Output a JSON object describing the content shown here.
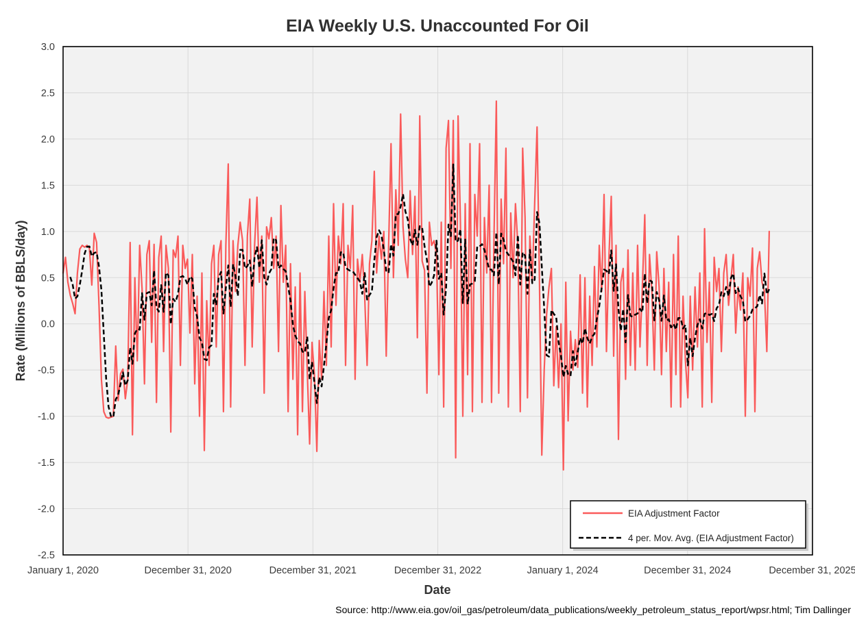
{
  "page": {
    "source_line": "Source: http://www.eia.gov/oil_gas/petroleum/data_publications/weekly_petroleum_status_report/wpsr.html; Tim Dallinger"
  },
  "chart_data": {
    "type": "line",
    "title": "EIA Weekly U.S. Unaccounted For Oil",
    "xlabel": "Date",
    "ylabel": "Rate (Millions of BBLS/day)",
    "ylim": [
      -2.5,
      3.0
    ],
    "y_tick_labels": [
      "3.0",
      "2.5",
      "2.0",
      "1.5",
      "1.0",
      "0.5",
      "0.0",
      "-0.5",
      "-1.0",
      "-1.5",
      "-2.0",
      "-2.5"
    ],
    "x_tick_labels": [
      "January 1, 2020",
      "December 31, 2020",
      "December 31, 2021",
      "December 31, 2022",
      "January 1, 2024",
      "December 31, 2024",
      "December 31, 2025"
    ],
    "x_axis_span_years": 6,
    "data_interval": "weekly",
    "grid": true,
    "legend_position": "inside-lower-right",
    "colors": {
      "series_line": "#fa5a5a",
      "moving_avg_line": "#000000",
      "plot_background": "#f2f2f2",
      "gridline": "#d9d9d9",
      "plot_border": "#000000",
      "legend_shadow": "#c8c8c8"
    },
    "series": [
      {
        "name": "EIA Adjustment Factor",
        "style": "solid",
        "values": [
          0.55,
          0.72,
          0.45,
          0.31,
          0.22,
          0.11,
          0.55,
          0.81,
          0.85,
          0.83,
          0.85,
          0.82,
          0.42,
          0.98,
          0.88,
          0.2,
          -0.6,
          -0.95,
          -1.01,
          -1.02,
          -1.01,
          -1.0,
          -0.24,
          -0.83,
          -0.54,
          -0.49,
          -0.81,
          -0.6,
          0.88,
          -1.2,
          0.5,
          -0.4,
          0.85,
          0.38,
          -0.65,
          0.75,
          0.9,
          -0.2,
          0.86,
          -0.85,
          0.72,
          0.95,
          -0.3,
          0.85,
          0.6,
          -1.17,
          0.8,
          0.72,
          0.95,
          -0.45,
          0.85,
          0.6,
          0.7,
          -0.1,
          0.75,
          -0.65,
          0.3,
          -1.0,
          0.55,
          -1.37,
          0.25,
          -0.45,
          0.65,
          0.85,
          -0.25,
          0.75,
          0.9,
          -0.95,
          0.85,
          1.73,
          -0.9,
          0.9,
          0.35,
          0.85,
          1.1,
          0.9,
          -0.45,
          0.95,
          1.35,
          -0.25,
          0.85,
          1.37,
          0.45,
          0.95,
          -0.75,
          1.05,
          0.92,
          1.15,
          0.6,
          0.95,
          -0.3,
          1.28,
          0.45,
          0.85,
          -0.95,
          0.65,
          -0.6,
          0.4,
          -1.2,
          0.55,
          -0.95,
          0.35,
          -0.5,
          -1.3,
          -0.2,
          -0.55,
          -1.38,
          -0.18,
          -0.6,
          0.35,
          -0.45,
          0.95,
          -0.25,
          1.3,
          0.2,
          0.95,
          0.65,
          1.3,
          -0.45,
          0.85,
          0.6,
          1.28,
          -0.6,
          0.7,
          0.45,
          0.75,
          0.3,
          -0.45,
          0.65,
          0.9,
          1.65,
          0.55,
          0.95,
          0.7,
          1.0,
          -0.35,
          0.85,
          1.95,
          0.5,
          1.45,
          0.85,
          2.27,
          1.05,
          0.7,
          0.5,
          1.44,
          0.75,
          1.38,
          -0.15,
          2.25,
          0.68,
          0.58,
          -0.75,
          1.1,
          0.85,
          0.9,
          0.75,
          -0.55,
          1.1,
          -0.9,
          1.9,
          2.2,
          0.6,
          2.2,
          -1.45,
          2.25,
          1.1,
          -1.0,
          1.3,
          -0.55,
          1.95,
          -0.95,
          1.4,
          0.95,
          1.95,
          -0.85,
          1.15,
          0.55,
          1.5,
          -0.85,
          0.9,
          2.41,
          -0.75,
          1.35,
          0.65,
          1.9,
          -0.9,
          1.2,
          0.5,
          1.3,
          0.85,
          -0.95,
          1.9,
          1.15,
          -0.8,
          0.95,
          0.46,
          1.3,
          2.13,
          0.46,
          -1.42,
          -0.5,
          0.1,
          0.4,
          0.6,
          -0.67,
          -0.03,
          -0.69,
          0.0,
          -1.58,
          0.45,
          -1.05,
          -0.08,
          -0.5,
          -0.17,
          -0.47,
          0.53,
          -0.75,
          0.5,
          -0.9,
          0.3,
          -0.45,
          0.62,
          -0.25,
          0.85,
          0.35,
          1.4,
          -0.3,
          0.7,
          1.38,
          -0.35,
          0.85,
          -1.25,
          0.45,
          0.6,
          -0.6,
          0.8,
          -0.45,
          0.55,
          -0.5,
          0.85,
          -0.25,
          0.4,
          1.18,
          -0.45,
          0.75,
          0.35,
          -0.5,
          0.78,
          0.4,
          -0.55,
          0.6,
          -0.3,
          0.45,
          -0.9,
          0.75,
          -0.55,
          0.95,
          -0.9,
          0.3,
          -0.4,
          -0.8,
          0.3,
          -0.5,
          0.4,
          -0.25,
          0.55,
          -0.9,
          1.03,
          -0.2,
          0.45,
          -0.85,
          0.72,
          0.35,
          0.6,
          -0.3,
          0.55,
          0.75,
          0.2,
          0.48,
          0.75,
          -0.1,
          0.4,
          0.15,
          0.55,
          -1.0,
          0.5,
          0.3,
          0.82,
          -0.95,
          0.6,
          0.78,
          0.45,
          0.35,
          -0.3,
          1.0
        ]
      },
      {
        "name": "4 per. Mov. Avg. (EIA Adjustment Factor)",
        "style": "dashed",
        "derived": "trailing 4-period moving average of the EIA Adjustment Factor series"
      }
    ]
  }
}
